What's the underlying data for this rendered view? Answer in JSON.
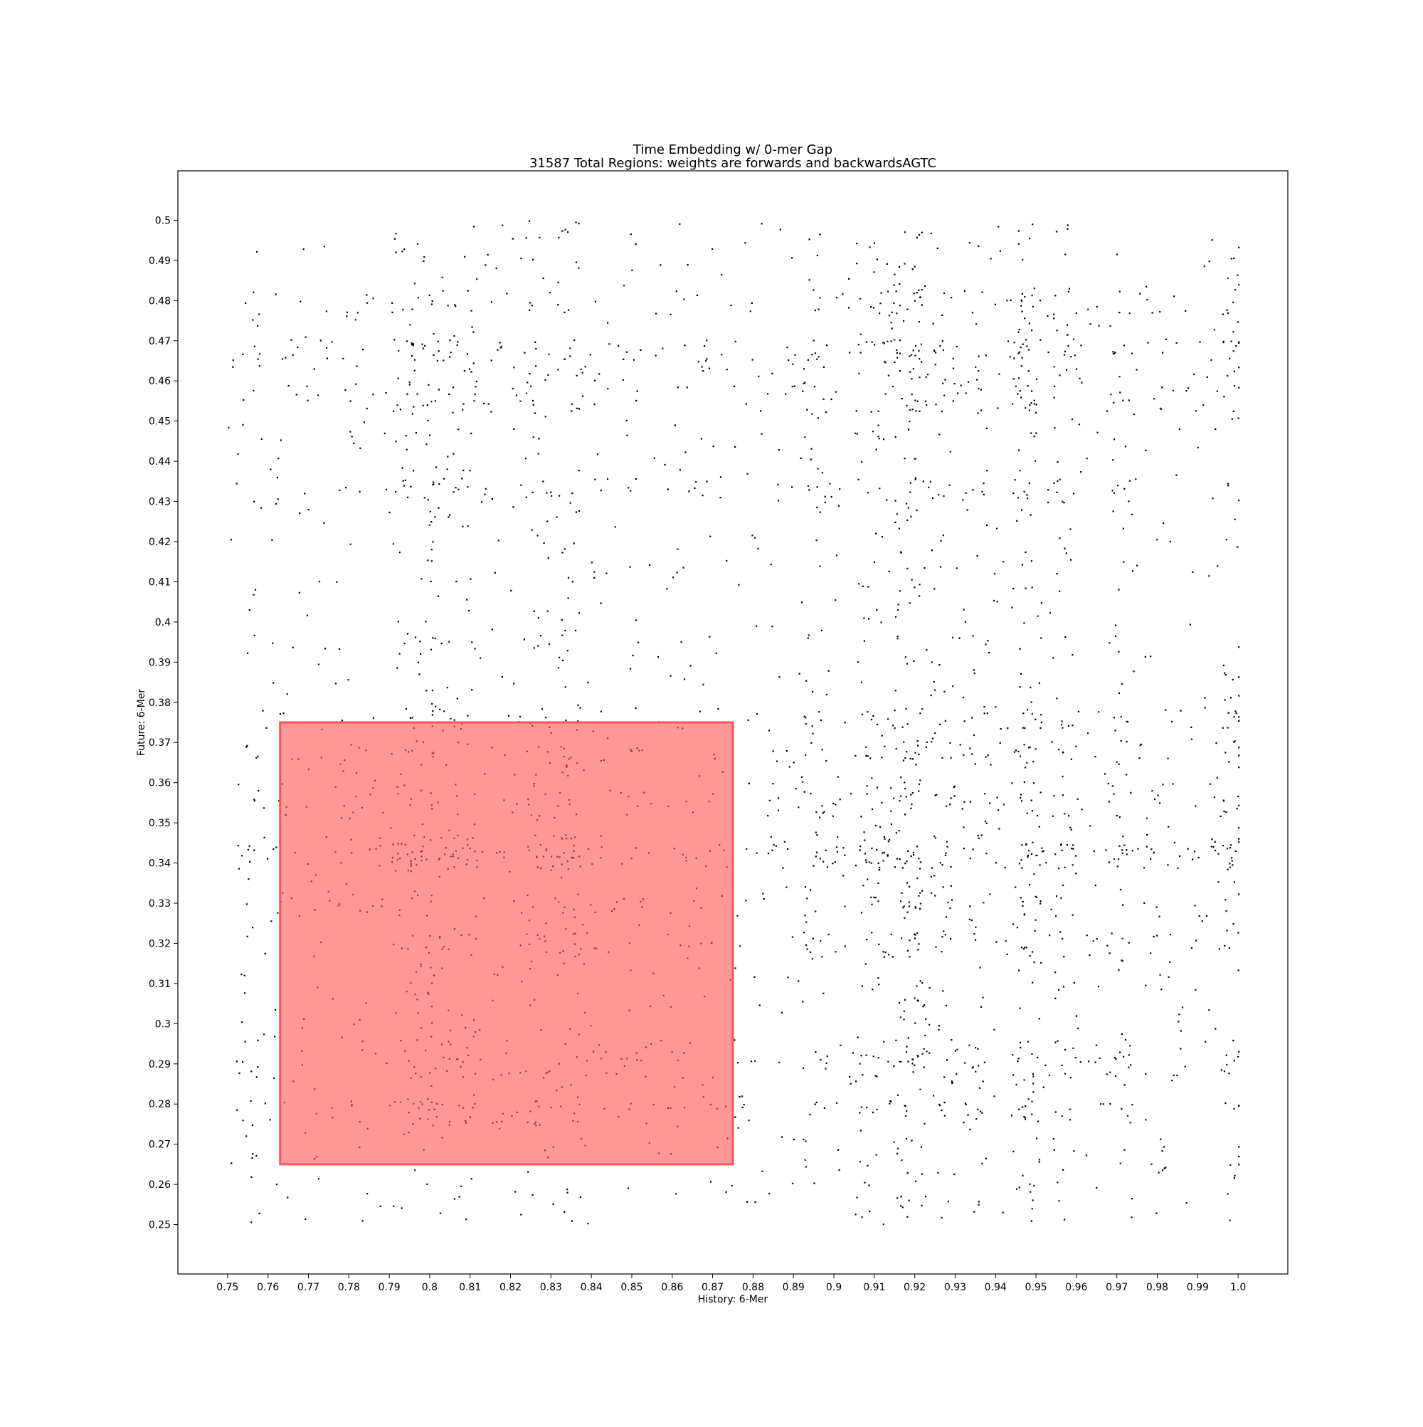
{
  "chart_data": {
    "type": "scatter",
    "title": "Time Embedding w/ 0-mer Gap",
    "subtitle": "31587 Total Regions: weights are forwards and backwardsAGTC",
    "xlabel": "History: 6-Mer",
    "ylabel": "Future: 6-Mer",
    "xlim": [
      0.7377,
      1.0123
    ],
    "ylim": [
      0.2377,
      0.5123
    ],
    "x_tick_labels": [
      "0.75",
      "0.76",
      "0.77",
      "0.78",
      "0.79",
      "0.8",
      "0.81",
      "0.82",
      "0.83",
      "0.84",
      "0.85",
      "0.86",
      "0.87",
      "0.88",
      "0.89",
      "0.9",
      "0.91",
      "0.92",
      "0.93",
      "0.94",
      "0.95",
      "0.96",
      "0.97",
      "0.98",
      "0.99",
      "1.0"
    ],
    "y_tick_labels": [
      "0.25",
      "0.26",
      "0.27",
      "0.28",
      "0.29",
      "0.3",
      "0.31",
      "0.32",
      "0.33",
      "0.34",
      "0.35",
      "0.36",
      "0.37",
      "0.38",
      "0.39",
      "0.4",
      "0.41",
      "0.42",
      "0.43",
      "0.44",
      "0.45",
      "0.46",
      "0.47",
      "0.48",
      "0.49",
      "0.5"
    ],
    "grid": false,
    "point_color": "#000000",
    "x_range_of_points": [
      0.75,
      1.0
    ],
    "y_range_of_points": [
      0.25,
      0.5
    ],
    "point_count": 31587,
    "highlight_region": {
      "x": [
        0.763,
        0.875
      ],
      "y": [
        0.265,
        0.375
      ],
      "color": "#ff5555",
      "opacity": 0.6
    }
  }
}
